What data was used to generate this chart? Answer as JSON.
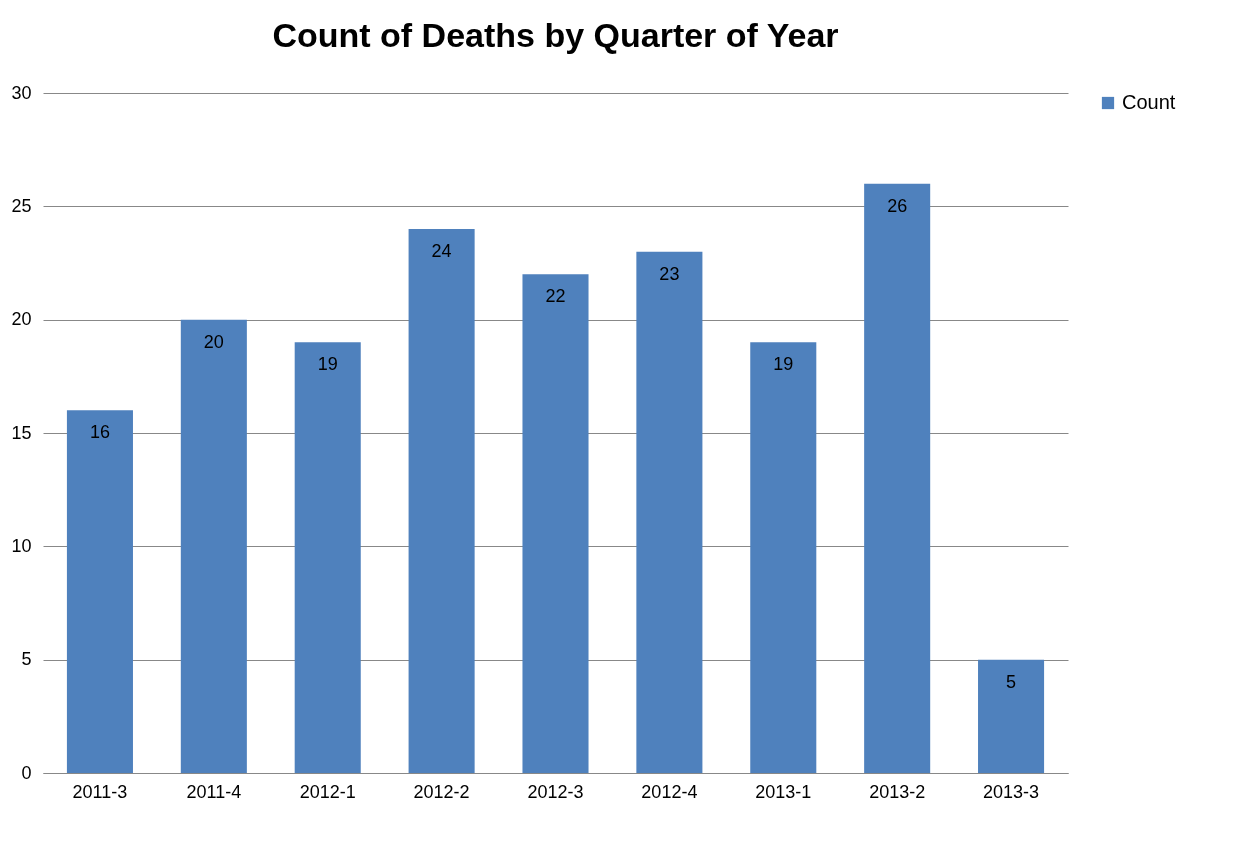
{
  "chart_data": {
    "type": "bar",
    "title": "Count of Deaths by Quarter of Year",
    "categories": [
      "2011-3",
      "2011-4",
      "2012-1",
      "2012-2",
      "2012-3",
      "2012-4",
      "2013-1",
      "2013-2",
      "2013-3"
    ],
    "series": [
      {
        "name": "Count",
        "color": "#4f81bd",
        "values": [
          16,
          20,
          19,
          24,
          22,
          23,
          19,
          26,
          5
        ]
      }
    ],
    "ylim": [
      0,
      30
    ],
    "yticks": [
      0,
      5,
      10,
      15,
      20,
      25,
      30
    ],
    "grid": "y",
    "legend": "right",
    "data_labels": true
  }
}
